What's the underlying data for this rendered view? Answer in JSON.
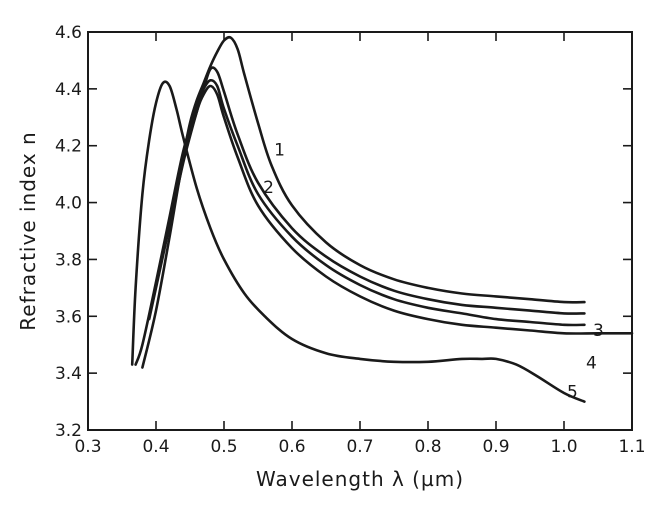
{
  "chart_data": {
    "type": "line",
    "title": "",
    "xlabel": "Wavelength λ (µm)",
    "ylabel": "Refractive index n",
    "xlim": [
      0.3,
      1.1
    ],
    "ylim": [
      3.2,
      4.6
    ],
    "xticks": [
      "0.3",
      "0.4",
      "0.5",
      "0.6",
      "0.7",
      "0.8",
      "0.9",
      "1.0",
      "1.1"
    ],
    "yticks": [
      "3.2",
      "3.4",
      "3.6",
      "3.8",
      "4.0",
      "4.2",
      "4.4",
      "4.6"
    ],
    "grid": false,
    "line_color": "#1a1a1a",
    "series": [
      {
        "name": "1",
        "x": [
          0.44,
          0.45,
          0.46,
          0.47,
          0.48,
          0.49,
          0.5,
          0.51,
          0.52,
          0.53,
          0.55,
          0.57,
          0.6,
          0.65,
          0.7,
          0.75,
          0.8,
          0.85,
          0.9,
          0.95,
          1.0,
          1.03
        ],
        "y": [
          4.16,
          4.28,
          4.36,
          4.42,
          4.48,
          4.53,
          4.57,
          4.58,
          4.54,
          4.45,
          4.28,
          4.13,
          3.99,
          3.86,
          3.78,
          3.73,
          3.7,
          3.68,
          3.67,
          3.66,
          3.65,
          3.65
        ]
      },
      {
        "name": "2",
        "x": [
          0.39,
          0.4,
          0.42,
          0.44,
          0.46,
          0.47,
          0.48,
          0.49,
          0.5,
          0.52,
          0.55,
          0.6,
          0.65,
          0.7,
          0.75,
          0.8,
          0.85,
          0.9,
          0.95,
          1.0,
          1.03
        ],
        "y": [
          3.59,
          3.7,
          3.92,
          4.14,
          4.32,
          4.4,
          4.47,
          4.46,
          4.39,
          4.24,
          4.07,
          3.91,
          3.81,
          3.74,
          3.69,
          3.66,
          3.64,
          3.63,
          3.62,
          3.61,
          3.61
        ]
      },
      {
        "name": "3",
        "x": [
          0.37,
          0.38,
          0.4,
          0.42,
          0.44,
          0.46,
          0.47,
          0.48,
          0.49,
          0.5,
          0.52,
          0.55,
          0.6,
          0.65,
          0.7,
          0.75,
          0.8,
          0.85,
          0.9,
          0.95,
          1.0,
          1.03
        ],
        "y": [
          3.43,
          3.5,
          3.72,
          3.95,
          4.18,
          4.34,
          4.4,
          4.43,
          4.41,
          4.33,
          4.2,
          4.03,
          3.88,
          3.78,
          3.71,
          3.66,
          3.63,
          3.61,
          3.59,
          3.58,
          3.57,
          3.57
        ]
      },
      {
        "name": "4",
        "x": [
          0.38,
          0.4,
          0.42,
          0.44,
          0.46,
          0.47,
          0.48,
          0.49,
          0.5,
          0.52,
          0.55,
          0.6,
          0.65,
          0.7,
          0.75,
          0.8,
          0.85,
          0.9,
          0.95,
          1.0,
          1.05,
          1.1
        ],
        "y": [
          3.42,
          3.62,
          3.88,
          4.15,
          4.32,
          4.38,
          4.41,
          4.38,
          4.3,
          4.16,
          3.99,
          3.84,
          3.74,
          3.67,
          3.62,
          3.59,
          3.57,
          3.56,
          3.55,
          3.54,
          3.54,
          3.54
        ]
      },
      {
        "name": "5",
        "x": [
          0.365,
          0.37,
          0.38,
          0.39,
          0.4,
          0.41,
          0.42,
          0.43,
          0.44,
          0.46,
          0.48,
          0.5,
          0.53,
          0.56,
          0.6,
          0.65,
          0.7,
          0.75,
          0.8,
          0.85,
          0.88,
          0.9,
          0.93,
          0.96,
          1.0,
          1.03
        ],
        "y": [
          3.43,
          3.7,
          4.03,
          4.22,
          4.35,
          4.42,
          4.41,
          4.33,
          4.23,
          4.05,
          3.91,
          3.8,
          3.68,
          3.6,
          3.52,
          3.47,
          3.45,
          3.44,
          3.44,
          3.45,
          3.45,
          3.45,
          3.43,
          3.39,
          3.33,
          3.3
        ]
      }
    ]
  }
}
